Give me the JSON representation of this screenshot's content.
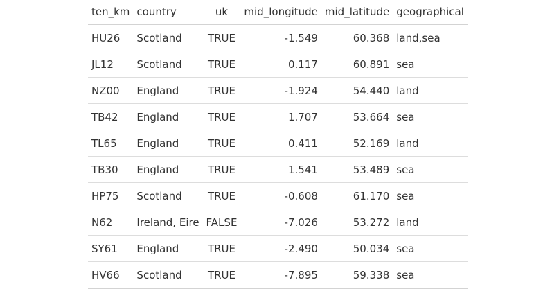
{
  "table": {
    "columns": [
      "ten_km",
      "country",
      "uk",
      "mid_longitude",
      "mid_latitude",
      "geographical"
    ],
    "rows": [
      {
        "ten_km": "HU26",
        "country": "Scotland",
        "uk": "TRUE",
        "mid_longitude": "-1.549",
        "mid_latitude": "60.368",
        "geographical": "land,sea"
      },
      {
        "ten_km": "JL12",
        "country": "Scotland",
        "uk": "TRUE",
        "mid_longitude": "0.117",
        "mid_latitude": "60.891",
        "geographical": "sea"
      },
      {
        "ten_km": "NZ00",
        "country": "England",
        "uk": "TRUE",
        "mid_longitude": "-1.924",
        "mid_latitude": "54.440",
        "geographical": "land"
      },
      {
        "ten_km": "TB42",
        "country": "England",
        "uk": "TRUE",
        "mid_longitude": "1.707",
        "mid_latitude": "53.664",
        "geographical": "sea"
      },
      {
        "ten_km": "TL65",
        "country": "England",
        "uk": "TRUE",
        "mid_longitude": "0.411",
        "mid_latitude": "52.169",
        "geographical": "land"
      },
      {
        "ten_km": "TB30",
        "country": "England",
        "uk": "TRUE",
        "mid_longitude": "1.541",
        "mid_latitude": "53.489",
        "geographical": "sea"
      },
      {
        "ten_km": "HP75",
        "country": "Scotland",
        "uk": "TRUE",
        "mid_longitude": "-0.608",
        "mid_latitude": "61.170",
        "geographical": "sea"
      },
      {
        "ten_km": "N62",
        "country": "Ireland, Eire",
        "uk": "FALSE",
        "mid_longitude": "-7.026",
        "mid_latitude": "53.272",
        "geographical": "land"
      },
      {
        "ten_km": "SY61",
        "country": "England",
        "uk": "TRUE",
        "mid_longitude": "-2.490",
        "mid_latitude": "50.034",
        "geographical": "sea"
      },
      {
        "ten_km": "HV66",
        "country": "Scotland",
        "uk": "TRUE",
        "mid_longitude": "-7.895",
        "mid_latitude": "59.338",
        "geographical": "sea"
      }
    ]
  }
}
